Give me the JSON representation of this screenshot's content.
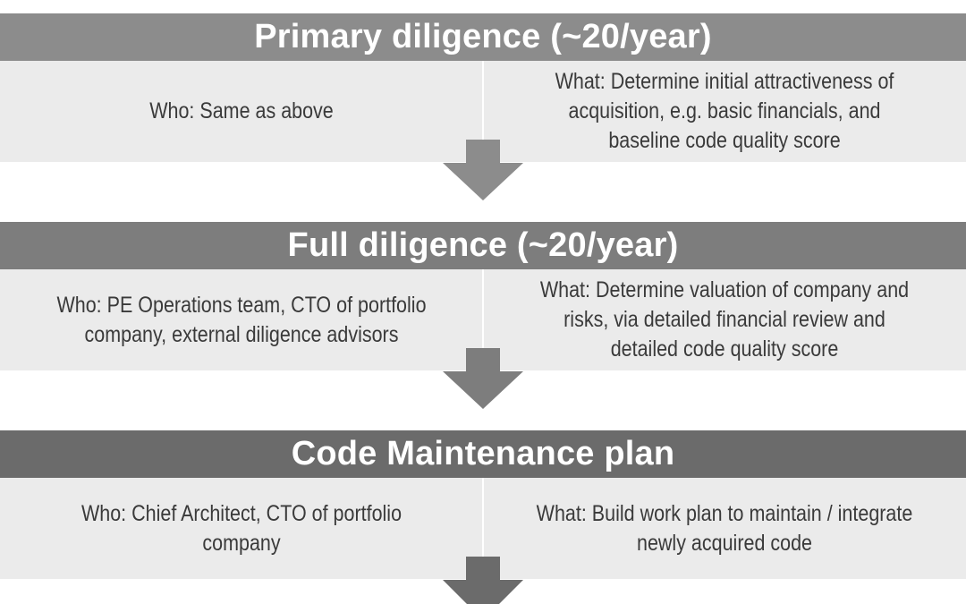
{
  "colors": {
    "header_1": "#8c8c8c",
    "header_2": "#7d7d7d",
    "header_3": "#6b6b6b",
    "row_bg": "#ebebeb",
    "arrow_1": "#8c8c8c",
    "arrow_2": "#7d7d7d",
    "arrow_3": "#6b6b6b",
    "text": "#3a3a3a"
  },
  "stages": [
    {
      "title": "Primary diligence (~20/year)",
      "who": "Who: Same as above",
      "what": "What: Determine initial attractiveness of acquisition, e.g. basic financials, and baseline code quality score"
    },
    {
      "title": "Full diligence (~20/year)",
      "who": "Who: PE Operations team, CTO of portfolio company, external diligence advisors",
      "what": "What: Determine valuation of company and risks, via detailed financial review and detailed code quality score"
    },
    {
      "title": "Code Maintenance plan",
      "who": "Who: Chief Architect, CTO of portfolio company",
      "what": "What: Build work plan to maintain / integrate newly acquired code"
    }
  ],
  "icons": [
    "down-arrow-icon",
    "down-arrow-icon",
    "down-arrow-icon"
  ]
}
